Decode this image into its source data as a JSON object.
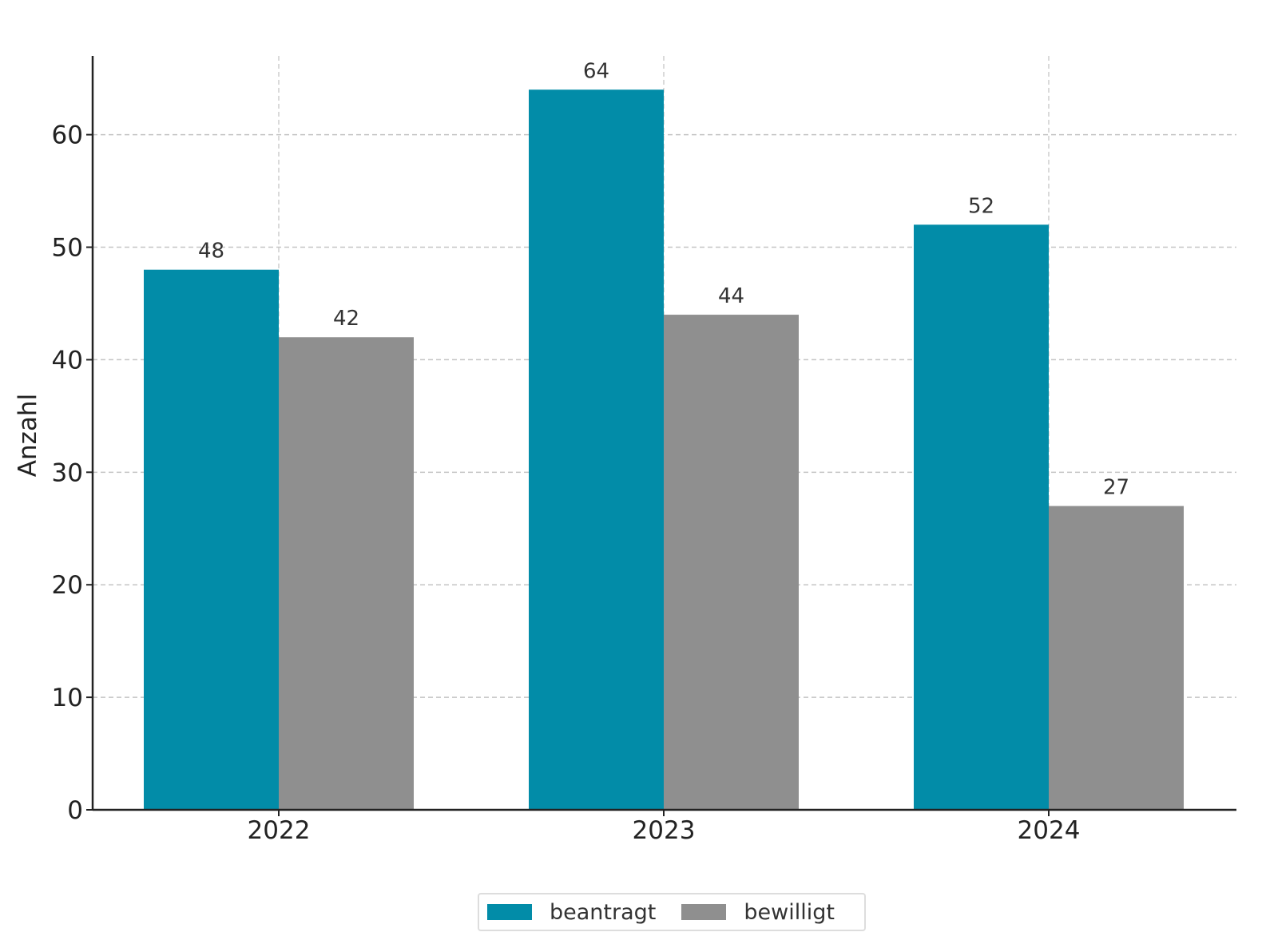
{
  "chart_data": {
    "type": "bar",
    "title": "",
    "xlabel": "",
    "ylabel": "Anzahl",
    "categories": [
      "2022",
      "2023",
      "2024"
    ],
    "series": [
      {
        "name": "beantragt",
        "values": [
          48,
          64,
          52
        ],
        "color": "#028ca8"
      },
      {
        "name": "bewilligt",
        "values": [
          42,
          44,
          27
        ],
        "color": "#8f8f8f"
      }
    ],
    "ylim": [
      0,
      67
    ],
    "yticks": [
      0,
      10,
      20,
      30,
      40,
      50,
      60
    ],
    "grid": true,
    "legend_position": "bottom-center"
  }
}
